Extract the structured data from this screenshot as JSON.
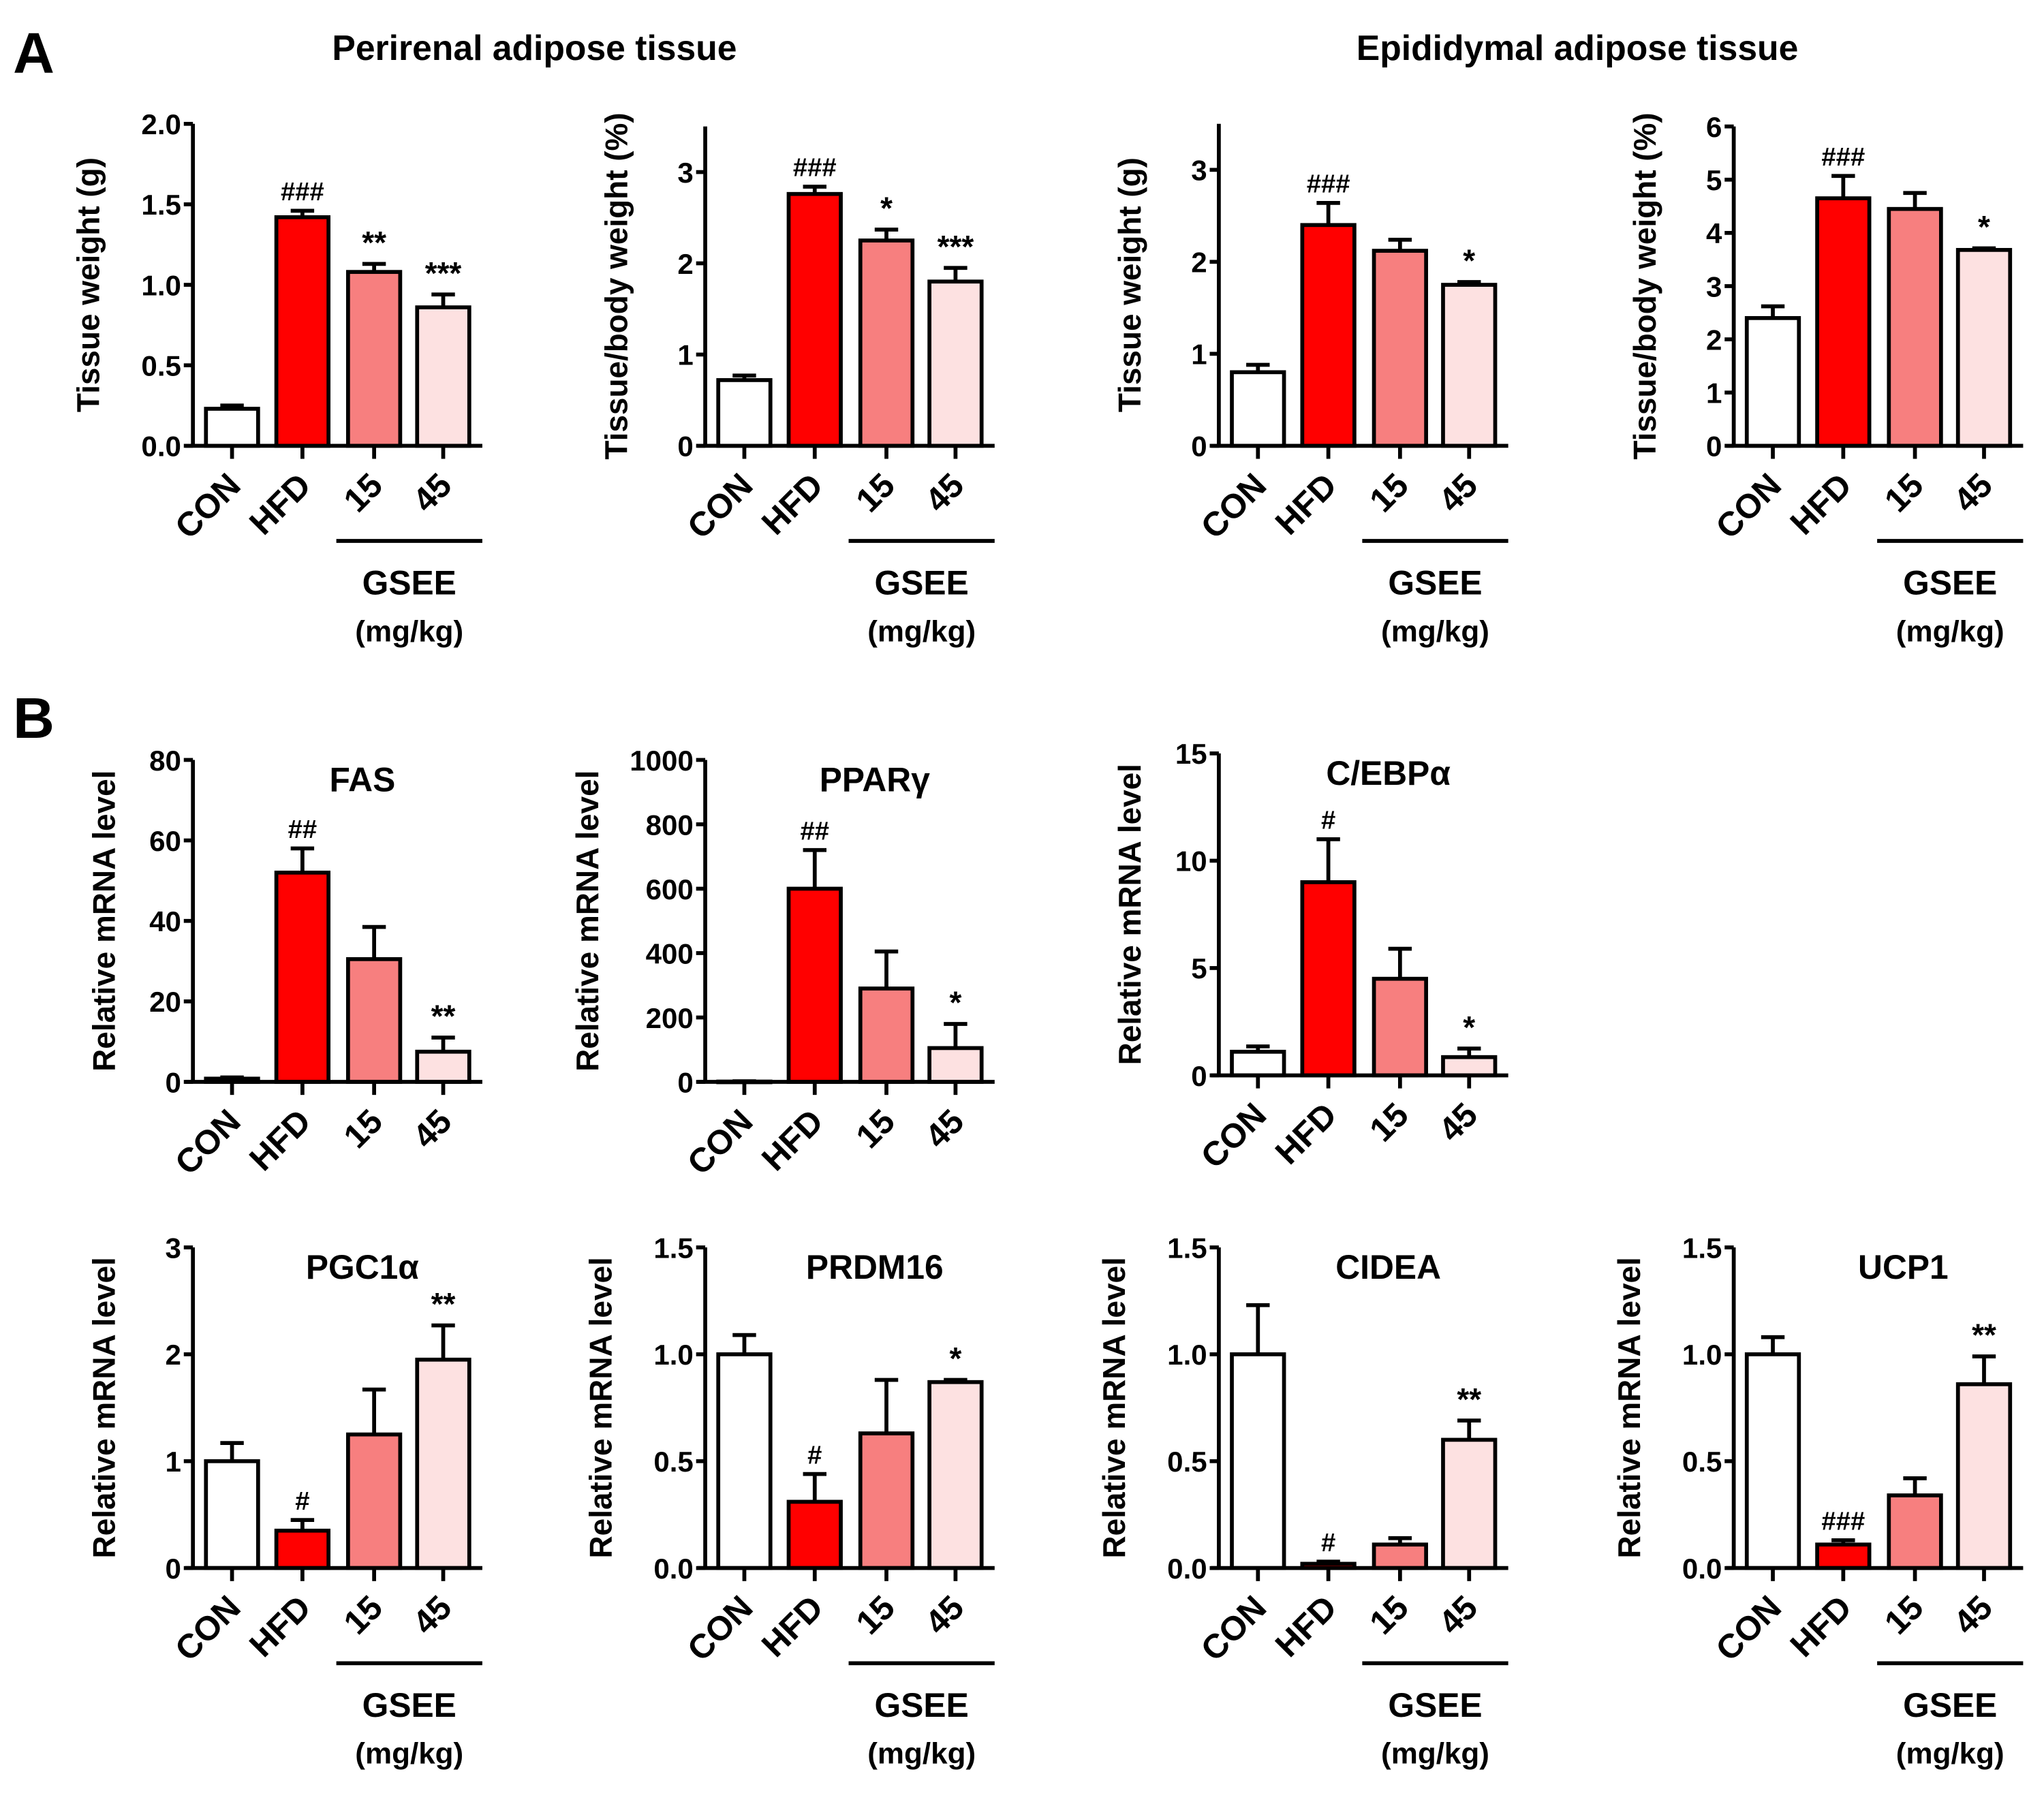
{
  "panels": {
    "a": "A",
    "b": "B"
  },
  "section_titles": {
    "perirenal": "Perirenal adipose tissue",
    "epididymal": "Epididymal adipose tissue"
  },
  "group_label": "GSEE",
  "unit_label": "(mg/kg)",
  "colors": {
    "CON": "#ffffff",
    "HFD": "#ff0000",
    "15": "#f77f7f",
    "45": "#fde1e1"
  },
  "chart_data": [
    {
      "type": "bar",
      "id": "a1",
      "title": "",
      "ylabel": "Tissue weight (g)",
      "categories": [
        "CON",
        "HFD",
        "15",
        "45"
      ],
      "values": [
        0.23,
        1.42,
        1.08,
        0.86
      ],
      "errors": [
        0.02,
        0.04,
        0.05,
        0.08
      ],
      "annotations": [
        "",
        "###",
        "**",
        "***"
      ],
      "ylim": [
        0,
        2.0
      ],
      "yticks": [
        0,
        0.5,
        1.0,
        1.5,
        2.0
      ],
      "yticklabels": [
        "0.0",
        "0.5",
        "1.0",
        "1.5",
        "2.0"
      ],
      "gsee": true
    },
    {
      "type": "bar",
      "id": "a2",
      "title": "",
      "ylabel": "Tissue/body weight (%)",
      "categories": [
        "CON",
        "HFD",
        "15",
        "45"
      ],
      "values": [
        0.72,
        2.76,
        2.25,
        1.8
      ],
      "errors": [
        0.05,
        0.08,
        0.12,
        0.15
      ],
      "annotations": [
        "",
        "###",
        "*",
        "***"
      ],
      "ylim": [
        0,
        3.5
      ],
      "yticks": [
        0,
        1,
        2,
        3
      ],
      "yticklabels": [
        "0",
        "1",
        "2",
        "3"
      ],
      "gsee": true
    },
    {
      "type": "bar",
      "id": "a3",
      "title": "",
      "ylabel": "Tissue weight (g)",
      "categories": [
        "CON",
        "HFD",
        "15",
        "45"
      ],
      "values": [
        0.8,
        2.4,
        2.12,
        1.75
      ],
      "errors": [
        0.08,
        0.24,
        0.12,
        0.03
      ],
      "annotations": [
        "",
        "###",
        "",
        "*"
      ],
      "ylim": [
        0,
        3.5
      ],
      "yticks": [
        0,
        1,
        2,
        3
      ],
      "yticklabels": [
        "0",
        "1",
        "2",
        "3"
      ],
      "gsee": true
    },
    {
      "type": "bar",
      "id": "a4",
      "title": "",
      "ylabel": "Tissue/body weight (%)",
      "categories": [
        "CON",
        "HFD",
        "15",
        "45"
      ],
      "values": [
        2.4,
        4.65,
        4.45,
        3.68
      ],
      "errors": [
        0.22,
        0.42,
        0.3,
        0.03
      ],
      "annotations": [
        "",
        "###",
        "",
        "*"
      ],
      "ylim": [
        0,
        6
      ],
      "yticks": [
        0,
        1,
        2,
        3,
        4,
        5,
        6
      ],
      "yticklabels": [
        "0",
        "1",
        "2",
        "3",
        "4",
        "5",
        "6"
      ],
      "gsee": true
    },
    {
      "type": "bar",
      "id": "fas",
      "title": "FAS",
      "ylabel": "Relative mRNA level",
      "categories": [
        "CON",
        "HFD",
        "15",
        "45"
      ],
      "values": [
        0.8,
        52,
        30.5,
        7.5
      ],
      "errors": [
        0.3,
        6,
        8,
        3.5
      ],
      "annotations": [
        "",
        "##",
        "",
        "**"
      ],
      "ylim": [
        0,
        80
      ],
      "yticks": [
        0,
        20,
        40,
        60,
        80
      ],
      "yticklabels": [
        "0",
        "20",
        "40",
        "60",
        "80"
      ],
      "gsee": false
    },
    {
      "type": "bar",
      "id": "pparg",
      "title": "PPARγ",
      "ylabel": "Relative mRNA level",
      "categories": [
        "CON",
        "HFD",
        "15",
        "45"
      ],
      "values": [
        1,
        600,
        290,
        105
      ],
      "errors": [
        1,
        120,
        115,
        75
      ],
      "annotations": [
        "",
        "##",
        "",
        "*"
      ],
      "ylim": [
        0,
        1000
      ],
      "yticks": [
        0,
        200,
        400,
        600,
        800,
        1000
      ],
      "yticklabels": [
        "0",
        "200",
        "400",
        "600",
        "800",
        "1000"
      ],
      "gsee": false
    },
    {
      "type": "bar",
      "id": "cebpa",
      "title": "C/EBPα",
      "ylabel": "Relative mRNA level",
      "categories": [
        "CON",
        "HFD",
        "15",
        "45"
      ],
      "values": [
        1.1,
        9.0,
        4.5,
        0.85
      ],
      "errors": [
        0.25,
        2.0,
        1.4,
        0.4
      ],
      "annotations": [
        "",
        "#",
        "",
        "*"
      ],
      "ylim": [
        0,
        15
      ],
      "yticks": [
        0,
        5,
        10,
        15
      ],
      "yticklabels": [
        "0",
        "5",
        "10",
        "15"
      ],
      "gsee": false
    },
    {
      "type": "bar",
      "id": "pgc1a",
      "title": "PGC1α",
      "ylabel": "Relative mRNA level",
      "categories": [
        "CON",
        "HFD",
        "15",
        "45"
      ],
      "values": [
        1.0,
        0.35,
        1.25,
        1.95
      ],
      "errors": [
        0.17,
        0.1,
        0.42,
        0.32
      ],
      "annotations": [
        "",
        "#",
        "",
        "**"
      ],
      "ylim": [
        0,
        3
      ],
      "yticks": [
        0,
        1,
        2,
        3
      ],
      "yticklabels": [
        "0",
        "1",
        "2",
        "3"
      ],
      "gsee": true
    },
    {
      "type": "bar",
      "id": "prdm16",
      "title": "PRDM16",
      "ylabel": "Relative mRNA level",
      "categories": [
        "CON",
        "HFD",
        "15",
        "45"
      ],
      "values": [
        1.0,
        0.31,
        0.63,
        0.87
      ],
      "errors": [
        0.09,
        0.13,
        0.25,
        0.01
      ],
      "annotations": [
        "",
        "#",
        "",
        "*"
      ],
      "ylim": [
        0,
        1.5
      ],
      "yticks": [
        0,
        0.5,
        1.0,
        1.5
      ],
      "yticklabels": [
        "0.0",
        "0.5",
        "1.0",
        "1.5"
      ],
      "gsee": true
    },
    {
      "type": "bar",
      "id": "cidea",
      "title": "CIDEA",
      "ylabel": "Relative mRNA level",
      "categories": [
        "CON",
        "HFD",
        "15",
        "45"
      ],
      "values": [
        1.0,
        0.02,
        0.11,
        0.6
      ],
      "errors": [
        0.23,
        0.01,
        0.03,
        0.09
      ],
      "annotations": [
        "",
        "#",
        "",
        "**"
      ],
      "ylim": [
        0,
        1.5
      ],
      "yticks": [
        0,
        0.5,
        1.0,
        1.5
      ],
      "yticklabels": [
        "0.0",
        "0.5",
        "1.0",
        "1.5"
      ],
      "gsee": true
    },
    {
      "type": "bar",
      "id": "ucp1",
      "title": "UCP1",
      "ylabel": "Relative mRNA level",
      "categories": [
        "CON",
        "HFD",
        "15",
        "45"
      ],
      "values": [
        1.0,
        0.11,
        0.34,
        0.86
      ],
      "errors": [
        0.08,
        0.02,
        0.08,
        0.13
      ],
      "annotations": [
        "",
        "###",
        "",
        "**"
      ],
      "ylim": [
        0,
        1.5
      ],
      "yticks": [
        0,
        0.5,
        1.0,
        1.5
      ],
      "yticklabels": [
        "0.0",
        "0.5",
        "1.0",
        "1.5"
      ],
      "gsee": true
    }
  ]
}
